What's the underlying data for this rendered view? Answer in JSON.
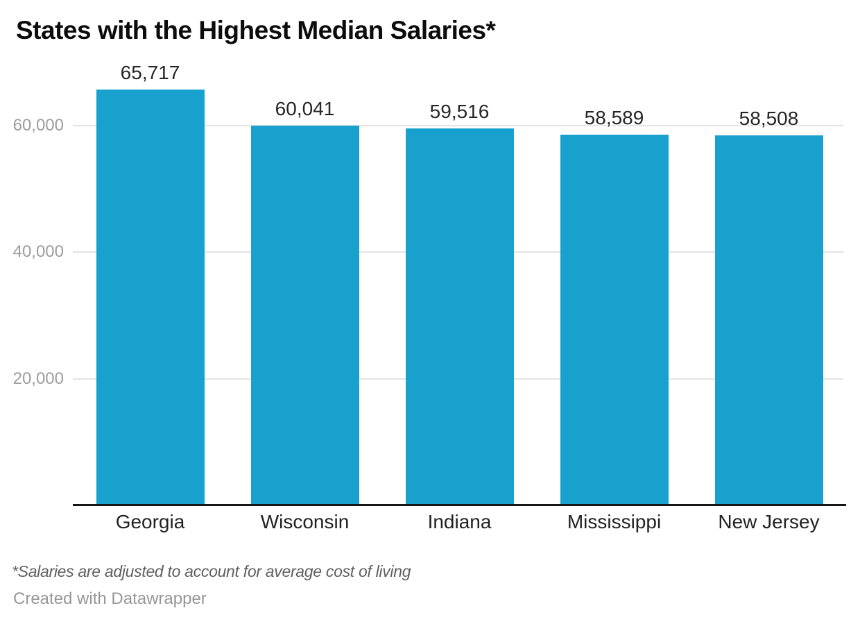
{
  "title": "States with the Highest Median Salaries*",
  "footnote": "*Salaries are adjusted to account for average cost of living",
  "attribution": "Created with Datawrapper",
  "colors": {
    "bar": "#18a1cd",
    "gridline": "#e3e3e3",
    "axis_line": "#161616",
    "tick_label": "#9d9d9d",
    "value_label": "#262626",
    "category_label": "#222222",
    "title_text": "#0c0c0c",
    "footnote_text": "#5f5f5f",
    "attribution_text": "#969696",
    "background": "#ffffff"
  },
  "chart_data": {
    "type": "bar",
    "title": "States with the Highest Median Salaries*",
    "categories": [
      "Georgia",
      "Wisconsin",
      "Indiana",
      "Mississippi",
      "New Jersey"
    ],
    "values": [
      65717,
      60041,
      59516,
      58589,
      58508
    ],
    "value_labels": [
      "65,717",
      "60,041",
      "59,516",
      "58,589",
      "58,508"
    ],
    "yticks": [
      20000,
      40000,
      60000
    ],
    "ytick_labels": [
      "20,000",
      "40,000",
      "60,000"
    ],
    "ylim": [
      0,
      70000
    ],
    "grid": true,
    "legend": false,
    "xlabel": "",
    "ylabel": ""
  }
}
